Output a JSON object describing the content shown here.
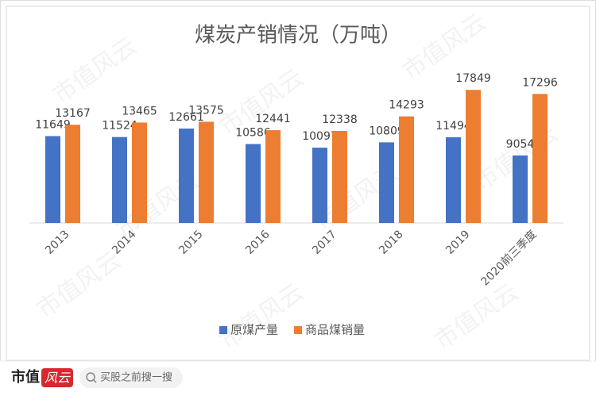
{
  "chart_data": {
    "type": "bar",
    "title": "煤炭产销情况（万吨）",
    "categories": [
      "2013",
      "2014",
      "2015",
      "2016",
      "2017",
      "2018",
      "2019",
      "2020前三季度"
    ],
    "series": [
      {
        "name": "原煤产量",
        "color": "#4472c4",
        "values": [
          11649,
          11524,
          12661,
          10586,
          10097,
          10809,
          11494,
          9054
        ]
      },
      {
        "name": "商品煤销量",
        "color": "#ed7d31",
        "values": [
          13167,
          13465,
          13575,
          12441,
          12338,
          14293,
          17849,
          17296
        ]
      }
    ],
    "ylim": [
      0,
      20000
    ],
    "legend": "bottom"
  },
  "watermark": "市值风云",
  "footer": {
    "brand": "市值",
    "logo": "风云",
    "search_placeholder": "买股之前搜一搜"
  }
}
